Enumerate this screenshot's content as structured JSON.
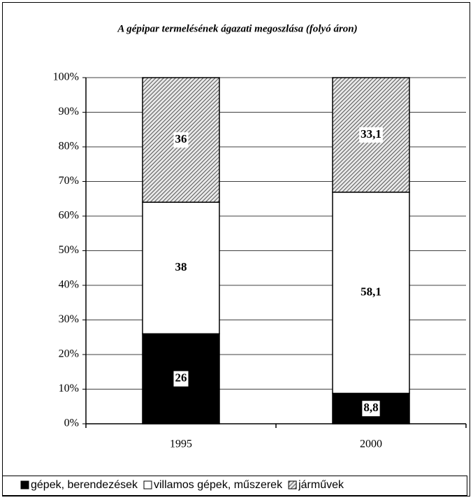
{
  "chart_data": {
    "type": "stacked_bar",
    "title": "A gépipar termelésének ágazati megoszlása (folyó áron)",
    "categories": [
      "1995",
      "2000"
    ],
    "series": [
      {
        "name": "gépek, berendezések",
        "color": "#000000",
        "values": [
          26,
          8.8
        ],
        "value_labels": [
          "26",
          "8,8"
        ]
      },
      {
        "name": "villamos gépek, műszerek",
        "color": "#ffffff",
        "values": [
          38,
          58.1
        ],
        "value_labels": [
          "38",
          "58,1"
        ]
      },
      {
        "name": "járművek",
        "color": "#808080",
        "pattern": "hatch",
        "values": [
          36,
          33.1
        ],
        "value_labels": [
          "36",
          "33,1"
        ]
      }
    ],
    "ylim": [
      0,
      100
    ],
    "yticks": [
      {
        "value": 0,
        "label": "0%"
      },
      {
        "value": 10,
        "label": "10%"
      },
      {
        "value": 20,
        "label": "20%"
      },
      {
        "value": 30,
        "label": "30%"
      },
      {
        "value": 40,
        "label": "40%"
      },
      {
        "value": 50,
        "label": "50%"
      },
      {
        "value": 60,
        "label": "60%"
      },
      {
        "value": 70,
        "label": "70%"
      },
      {
        "value": 80,
        "label": "80%"
      },
      {
        "value": 90,
        "label": "90%"
      },
      {
        "value": 100,
        "label": "100%"
      }
    ],
    "grid": true,
    "legend": "bottom"
  }
}
